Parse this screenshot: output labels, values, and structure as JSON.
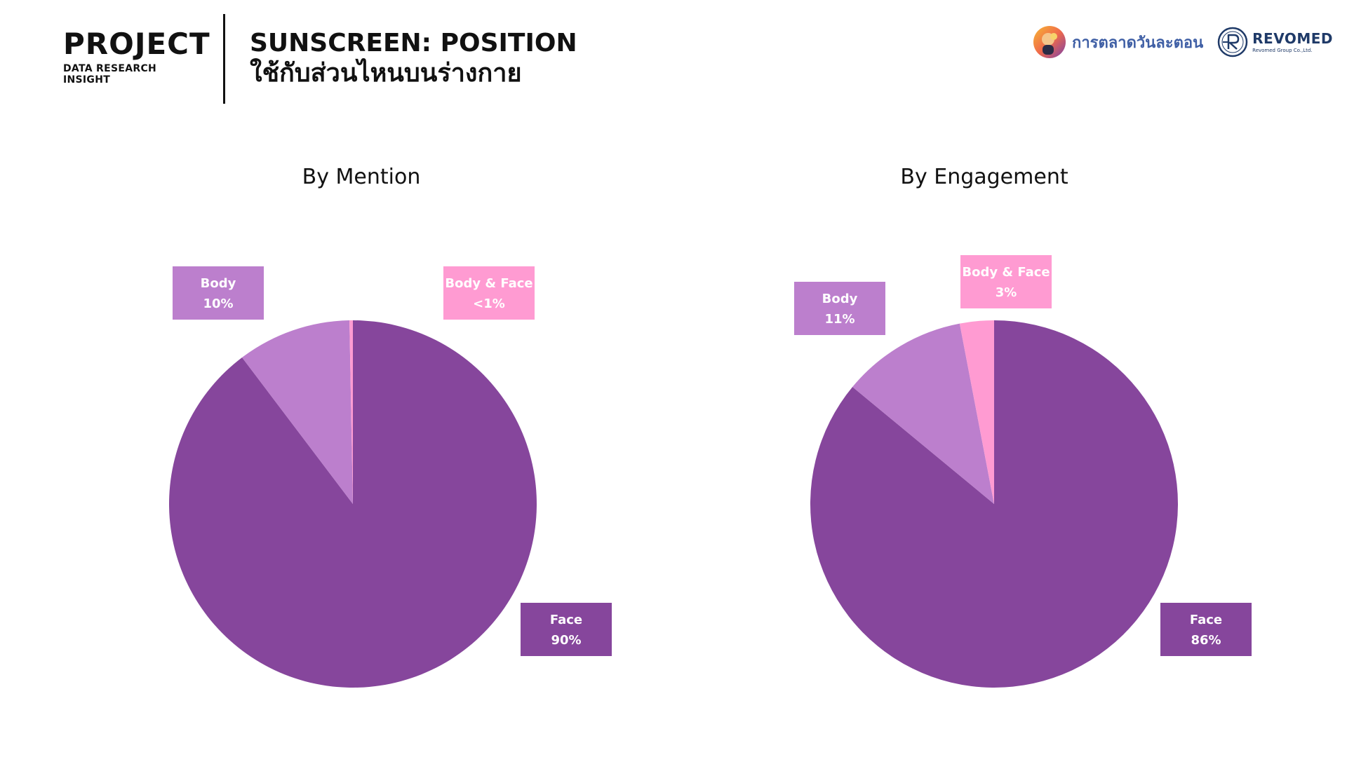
{
  "header": {
    "brand_title": "PROJECT",
    "brand_subtitle": "DATA RESEARCH INSIGHT",
    "title_line1": "SUNSCREEN: POSITION",
    "title_line2": "ใช้กับส่วนไหนบนร่างกาย"
  },
  "logos": {
    "logo1_text": "การตลาดวันละตอน",
    "logo2_text": "REVOMED",
    "logo2_subtext": "Revomed Group Co.,Ltd."
  },
  "colors": {
    "face": "#86469c",
    "body": "#bc7fcd",
    "body_face": "#ff9bd2"
  },
  "chart_data": [
    {
      "type": "pie",
      "title": "By Mention",
      "slices": [
        {
          "label": "Face",
          "value": 89.7,
          "display": "90%",
          "color": "#86469c"
        },
        {
          "label": "Body",
          "value": 10.0,
          "display": "10%",
          "color": "#bc7fcd"
        },
        {
          "label": "Body & Face",
          "value": 0.3,
          "display": "<1%",
          "color": "#ff9bd2"
        }
      ]
    },
    {
      "type": "pie",
      "title": "By Engagement",
      "slices": [
        {
          "label": "Face",
          "value": 86,
          "display": "86%",
          "color": "#86469c"
        },
        {
          "label": "Body",
          "value": 11,
          "display": "11%",
          "color": "#bc7fcd"
        },
        {
          "label": "Body & Face",
          "value": 3,
          "display": "3%",
          "color": "#ff9bd2"
        }
      ]
    }
  ]
}
